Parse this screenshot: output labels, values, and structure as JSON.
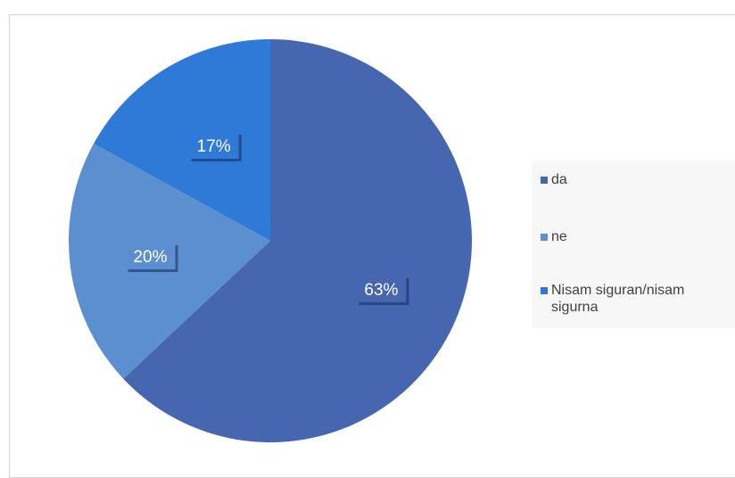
{
  "chart_data": {
    "type": "pie",
    "categories": [
      "da",
      "ne",
      "Nisam siguran/nisam sigurna"
    ],
    "values": [
      63,
      20,
      17
    ],
    "data_labels": [
      "63%",
      "20%",
      "17%"
    ],
    "colors": [
      "#4666b0",
      "#5b8fd0",
      "#2f7ad6"
    ],
    "start_angle_deg": 0,
    "direction": "clockwise",
    "legend_position": "right"
  }
}
